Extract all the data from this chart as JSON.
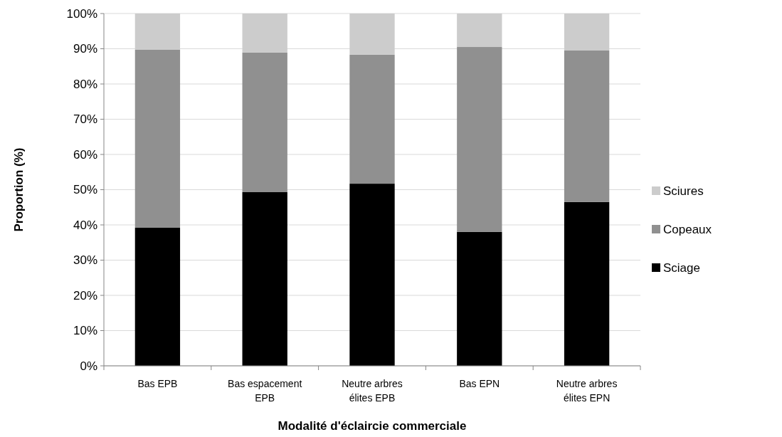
{
  "chart_data": {
    "type": "bar",
    "stacked": true,
    "xlabel": "Modalité d'éclaircie commerciale",
    "ylabel": "Proportion (%)",
    "categories": [
      "Bas EPB",
      "Bas espacement EPB",
      "Neutre arbres élites EPB",
      "Bas EPN",
      "Neutre arbres élites EPN"
    ],
    "series": [
      {
        "name": "Sciage",
        "color": "#000000",
        "values": [
          39.2,
          49.3,
          51.7,
          38.0,
          46.5
        ]
      },
      {
        "name": "Copeaux",
        "color": "#909090",
        "values": [
          50.5,
          39.6,
          36.6,
          52.5,
          43.0
        ]
      },
      {
        "name": "Sciures",
        "color": "#cccccc",
        "values": [
          10.3,
          11.1,
          11.7,
          9.5,
          10.5
        ]
      }
    ],
    "ylim": [
      0,
      100
    ],
    "yticks": [
      {
        "value": 0,
        "label": "0%"
      },
      {
        "value": 10,
        "label": "10%"
      },
      {
        "value": 20,
        "label": "20%"
      },
      {
        "value": 30,
        "label": "30%"
      },
      {
        "value": 40,
        "label": "40%"
      },
      {
        "value": 50,
        "label": "50%"
      },
      {
        "value": 60,
        "label": "60%"
      },
      {
        "value": 70,
        "label": "70%"
      },
      {
        "value": 80,
        "label": "80%"
      },
      {
        "value": 90,
        "label": "90%"
      },
      {
        "value": 100,
        "label": "100%"
      }
    ],
    "grid": "y",
    "legend": "right"
  }
}
